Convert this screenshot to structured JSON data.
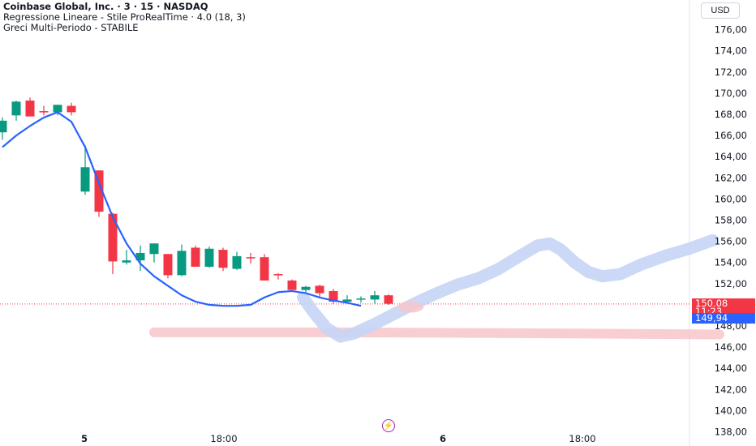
{
  "legend": {
    "title": "Coinbase Global, Inc. · 3 · 15 · NASDAQ",
    "indicator1": "Regressione Lineare - Stile ProRealTime · 4.0 (18, 3)",
    "indicator2": "Greci Multi-Periodo - STABILE"
  },
  "currency_button": "USD",
  "price_tags": {
    "last_price": "150,08",
    "countdown": "11:23",
    "regression_value": "149,94",
    "last_color": "#f23645",
    "regression_color": "#2962ff"
  },
  "colors": {
    "up": "#089981",
    "down": "#f23645",
    "regression_line": "#2962ff",
    "hand_drawn_blue": "#c5d5f5",
    "hand_drawn_red": "#f7c6cb"
  },
  "chart_data": {
    "type": "candlestick",
    "ylim": [
      137.5,
      177.5
    ],
    "y_ticks": [
      "176,00",
      "174,00",
      "172,00",
      "170,00",
      "168,00",
      "166,00",
      "164,00",
      "162,00",
      "160,00",
      "158,00",
      "156,00",
      "154,00",
      "152,00",
      "150,00",
      "148,00",
      "146,00",
      "144,00",
      "142,00",
      "140,00",
      "138,00"
    ],
    "x_ticks": [
      "5",
      "18:00",
      "6",
      "18:00"
    ],
    "last_price": 150.08,
    "candles": [
      {
        "o": 166.3,
        "h": 167.7,
        "l": 165.6,
        "c": 167.4
      },
      {
        "o": 167.9,
        "h": 169.3,
        "l": 167.4,
        "c": 169.2
      },
      {
        "o": 169.3,
        "h": 169.6,
        "l": 168.0,
        "c": 167.8
      },
      {
        "o": 168.3,
        "h": 168.8,
        "l": 167.9,
        "c": 168.2
      },
      {
        "o": 168.2,
        "h": 168.9,
        "l": 167.9,
        "c": 168.9
      },
      {
        "o": 168.8,
        "h": 169.1,
        "l": 167.9,
        "c": 168.2
      },
      {
        "o": 160.7,
        "h": 165.1,
        "l": 160.4,
        "c": 163.0
      },
      {
        "o": 162.7,
        "h": 162.7,
        "l": 158.3,
        "c": 158.8
      },
      {
        "o": 158.6,
        "h": 158.7,
        "l": 152.9,
        "c": 154.1
      },
      {
        "o": 154.0,
        "h": 155.2,
        "l": 153.8,
        "c": 154.2
      },
      {
        "o": 154.2,
        "h": 155.6,
        "l": 153.2,
        "c": 154.9
      },
      {
        "o": 154.8,
        "h": 155.8,
        "l": 154.0,
        "c": 155.8
      },
      {
        "o": 154.8,
        "h": 154.8,
        "l": 152.5,
        "c": 152.8
      },
      {
        "o": 152.8,
        "h": 155.7,
        "l": 152.7,
        "c": 155.1
      },
      {
        "o": 155.4,
        "h": 155.6,
        "l": 153.6,
        "c": 153.6
      },
      {
        "o": 153.6,
        "h": 155.5,
        "l": 153.5,
        "c": 155.3
      },
      {
        "o": 155.2,
        "h": 155.4,
        "l": 153.2,
        "c": 153.5
      },
      {
        "o": 153.4,
        "h": 155.0,
        "l": 153.3,
        "c": 154.6
      },
      {
        "o": 154.5,
        "h": 154.9,
        "l": 153.9,
        "c": 154.4
      },
      {
        "o": 154.5,
        "h": 154.8,
        "l": 152.3,
        "c": 152.3
      },
      {
        "o": 152.9,
        "h": 153.0,
        "l": 152.4,
        "c": 152.8
      },
      {
        "o": 152.3,
        "h": 152.4,
        "l": 151.4,
        "c": 151.4
      },
      {
        "o": 151.4,
        "h": 151.8,
        "l": 151.2,
        "c": 151.7
      },
      {
        "o": 151.8,
        "h": 151.9,
        "l": 150.6,
        "c": 151.1
      },
      {
        "o": 151.3,
        "h": 151.5,
        "l": 150.1,
        "c": 150.3
      },
      {
        "o": 150.3,
        "h": 150.9,
        "l": 150.1,
        "c": 150.5
      },
      {
        "o": 150.5,
        "h": 150.8,
        "l": 150.2,
        "c": 150.6
      },
      {
        "o": 150.5,
        "h": 151.3,
        "l": 150.1,
        "c": 150.9
      },
      {
        "o": 150.9,
        "h": 151.0,
        "l": 150.0,
        "c": 150.1
      }
    ],
    "regression_line": [
      [
        0,
        164.9
      ],
      [
        1,
        166.0
      ],
      [
        2,
        166.9
      ],
      [
        3,
        167.7
      ],
      [
        4,
        168.2
      ],
      [
        5,
        167.3
      ],
      [
        6,
        164.9
      ],
      [
        7,
        161.5
      ],
      [
        8,
        158.3
      ],
      [
        9,
        155.8
      ],
      [
        10,
        153.9
      ],
      [
        11,
        152.7
      ],
      [
        12,
        151.8
      ],
      [
        13,
        150.9
      ],
      [
        14,
        150.3
      ],
      [
        15,
        150.0
      ],
      [
        16,
        149.9
      ],
      [
        17,
        149.9
      ],
      [
        18,
        150.0
      ],
      [
        19,
        150.7
      ],
      [
        20,
        151.2
      ],
      [
        21,
        151.3
      ],
      [
        22,
        151.1
      ],
      [
        23,
        150.7
      ],
      [
        24,
        150.4
      ],
      [
        25,
        150.2
      ],
      [
        26,
        149.9
      ]
    ],
    "drawn_blue_path": [
      [
        21.8,
        150.7
      ],
      [
        22.5,
        149.4
      ],
      [
        23.5,
        147.8
      ],
      [
        24.5,
        147.0
      ],
      [
        25.5,
        147.3
      ],
      [
        27.0,
        148.2
      ],
      [
        28.5,
        149.2
      ],
      [
        30.0,
        150.2
      ],
      [
        31.5,
        151.1
      ],
      [
        33.0,
        151.9
      ],
      [
        34.5,
        152.5
      ],
      [
        36.0,
        153.4
      ],
      [
        37.5,
        154.6
      ],
      [
        38.8,
        155.6
      ],
      [
        39.7,
        155.8
      ],
      [
        40.5,
        155.2
      ],
      [
        41.5,
        154.0
      ],
      [
        42.5,
        153.1
      ],
      [
        43.5,
        152.7
      ],
      [
        44.8,
        152.9
      ],
      [
        46.3,
        153.8
      ],
      [
        48.0,
        154.6
      ],
      [
        49.8,
        155.3
      ],
      [
        51.5,
        156.1
      ]
    ],
    "drawn_red_path": [
      [
        11,
        147.4
      ],
      [
        25,
        147.4
      ],
      [
        40,
        147.3
      ],
      [
        52,
        147.2
      ]
    ],
    "drawn_red_blob": [
      29.6,
      149.8
    ]
  }
}
